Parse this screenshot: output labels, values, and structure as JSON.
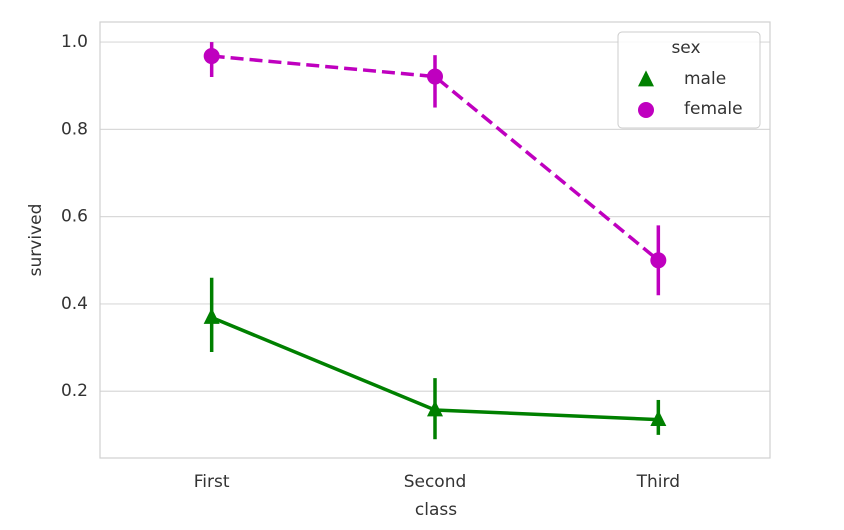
{
  "chart_data": {
    "type": "pointplot",
    "xlabel": "class",
    "ylabel": "survived",
    "categories": [
      "First",
      "Second",
      "Third"
    ],
    "series": [
      {
        "name": "male",
        "color": "#008000",
        "marker": "^",
        "linestyle": "-",
        "values": [
          0.369,
          0.157,
          0.135
        ],
        "ci_low": [
          0.29,
          0.09,
          0.1
        ],
        "ci_high": [
          0.46,
          0.23,
          0.18
        ]
      },
      {
        "name": "female",
        "color": "#bf00bf",
        "marker": "o",
        "linestyle": "--",
        "values": [
          0.968,
          0.921,
          0.5
        ],
        "ci_low": [
          0.92,
          0.85,
          0.42
        ],
        "ci_high": [
          1.0,
          0.97,
          0.58
        ]
      }
    ],
    "ylim": [
      0.047,
      1.046
    ],
    "yticks": [
      0.2,
      0.4,
      0.6,
      0.8,
      {
        "value": 1,
        "label": "1.0"
      }
    ],
    "grid": true,
    "legend_title": "sex",
    "legend_position": "upper right"
  }
}
